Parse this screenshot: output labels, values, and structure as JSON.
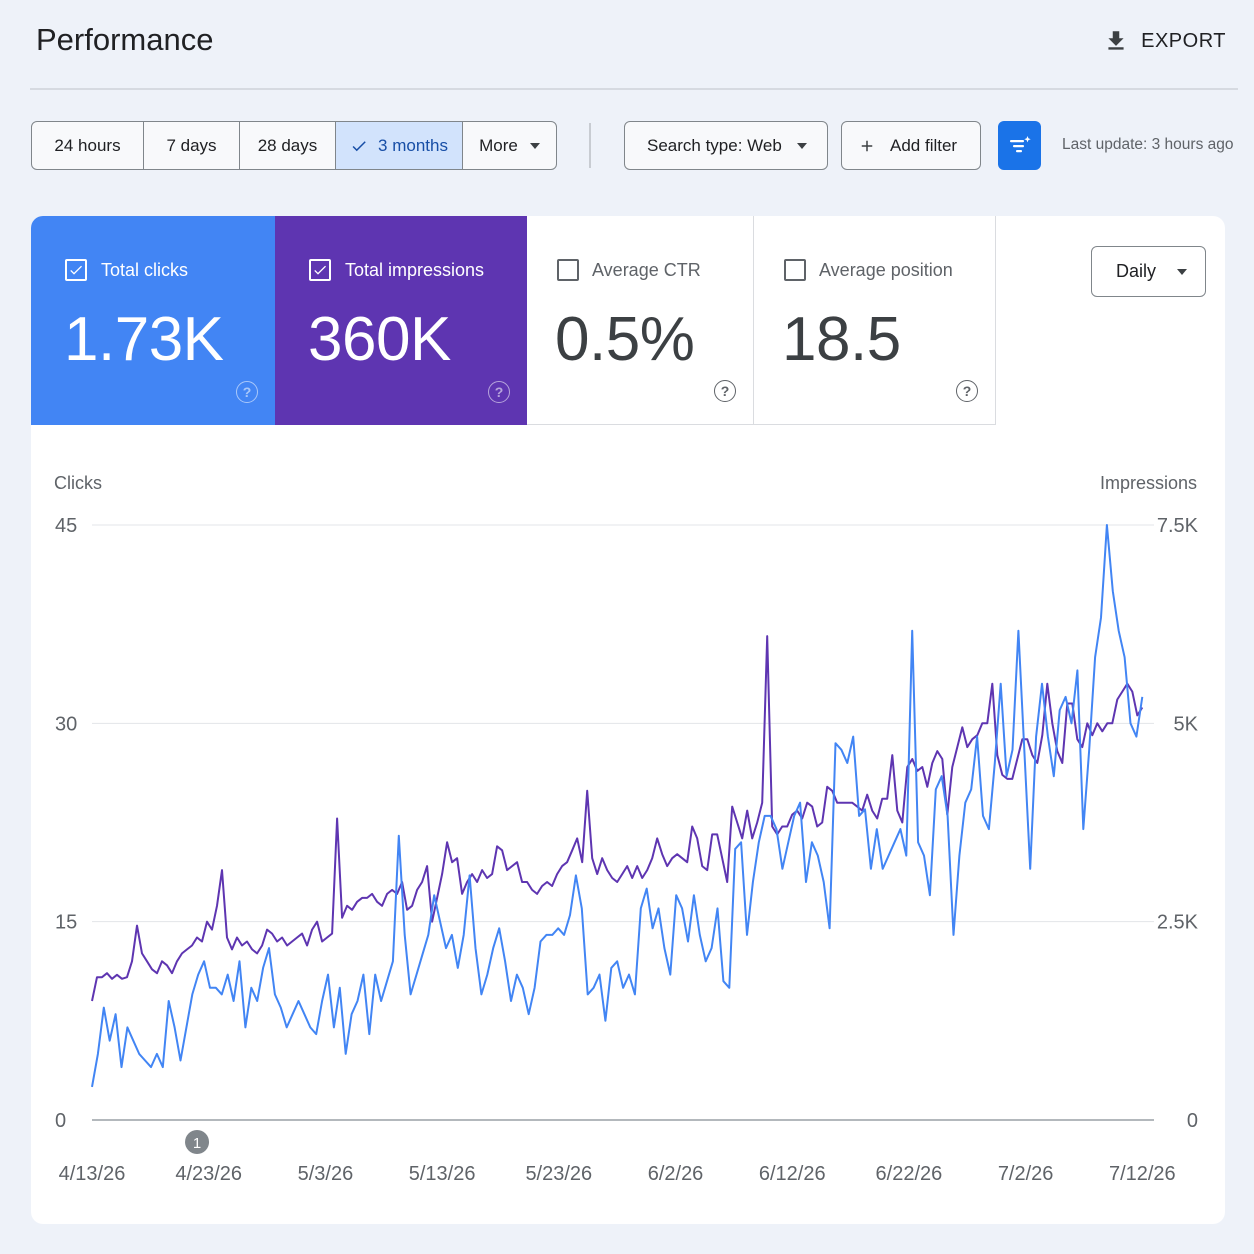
{
  "header": {
    "title": "Performance",
    "export_label": "EXPORT",
    "export_icon": "download-icon"
  },
  "toolbar": {
    "ranges": [
      {
        "label": "24 hours",
        "selected": false
      },
      {
        "label": "7 days",
        "selected": false
      },
      {
        "label": "28 days",
        "selected": false
      },
      {
        "label": "3 months",
        "selected": true
      },
      {
        "label": "More",
        "selected": false
      }
    ],
    "search_type_label": "Search type: Web",
    "add_filter_label": "Add filter",
    "filter_icon": "filter-sparkle-icon",
    "last_update": "Last update: 3 hours ago"
  },
  "metrics": [
    {
      "label": "Total clicks",
      "value": "1.73K",
      "checked": true,
      "color": "#4285f4"
    },
    {
      "label": "Total impressions",
      "value": "360K",
      "checked": true,
      "color": "#5e35b1"
    },
    {
      "label": "Average CTR",
      "value": "0.5%",
      "checked": false
    },
    {
      "label": "Average position",
      "value": "18.5",
      "checked": false
    }
  ],
  "granularity": {
    "selected": "Daily"
  },
  "chart_data": {
    "type": "line",
    "left_axis_title": "Clicks",
    "right_axis_title": "Impressions",
    "left_ticks": [
      "0",
      "15",
      "30",
      "45"
    ],
    "right_ticks": [
      "0",
      "2.5K",
      "5K",
      "7.5K"
    ],
    "ylim_left": [
      0,
      45
    ],
    "ylim_right": [
      0,
      7500
    ],
    "x_tick_labels": [
      "4/13/26",
      "4/23/26",
      "5/3/26",
      "5/13/26",
      "5/23/26",
      "6/2/26",
      "6/12/26",
      "6/22/26",
      "7/2/26",
      "7/12/26"
    ],
    "x_range": [
      "4/13/26",
      "7/13/26"
    ],
    "annotation": {
      "label": "1",
      "date": "4/22/26"
    },
    "grid": true,
    "colors": {
      "clicks": "#4285f4",
      "impressions": "#5e35b1"
    },
    "series": [
      {
        "name": "Clicks",
        "axis": "left",
        "values": [
          2.5,
          5,
          8.5,
          6,
          8,
          4,
          7,
          6,
          5,
          4.5,
          4,
          5,
          4,
          9,
          7,
          4.5,
          7,
          9.5,
          11,
          12,
          10,
          10,
          9.5,
          11,
          9,
          12,
          7,
          10,
          9,
          11.5,
          13,
          9.5,
          8.5,
          7,
          8,
          9,
          8,
          7,
          6.5,
          9,
          11,
          7,
          10,
          5,
          8,
          9,
          11,
          6.5,
          11,
          9,
          10.5,
          12,
          21.5,
          14,
          9.5,
          11,
          12.5,
          14,
          17,
          15,
          13,
          14,
          11.5,
          14,
          18.5,
          13,
          9.5,
          11,
          13,
          14.5,
          12,
          9,
          11,
          10,
          8,
          10,
          13.5,
          14,
          14,
          14.5,
          14,
          15.5,
          18.5,
          16,
          9.5,
          10,
          11,
          7.5,
          11.5,
          12,
          10,
          11,
          9.5,
          16,
          17.5,
          14.5,
          16,
          13,
          11,
          17,
          16,
          13.5,
          17,
          14,
          12,
          13,
          16,
          10.5,
          10,
          20.5,
          21,
          14,
          18,
          21,
          23,
          23,
          22,
          19,
          21,
          23,
          24,
          18,
          21,
          20,
          18,
          14.5,
          28.5,
          28,
          27,
          29,
          23,
          23.5,
          19,
          22,
          19,
          20,
          21,
          22,
          20,
          37,
          21,
          20,
          17,
          25,
          26,
          23,
          14,
          20,
          24,
          25,
          29,
          23,
          22,
          27,
          33,
          26,
          28,
          37,
          28,
          19,
          29,
          33,
          29,
          26,
          31,
          32,
          30,
          34,
          22,
          28,
          35,
          38,
          45,
          40,
          37,
          35,
          30,
          29,
          32
        ]
      },
      {
        "name": "Impressions",
        "axis": "right",
        "values": [
          1500,
          1800,
          1800,
          1850,
          1780,
          1830,
          1780,
          1800,
          2000,
          2450,
          2100,
          2000,
          1900,
          1850,
          2000,
          1950,
          1850,
          2000,
          2100,
          2150,
          2200,
          2300,
          2250,
          2500,
          2400,
          2700,
          3150,
          2300,
          2150,
          2300,
          2200,
          2250,
          2150,
          2100,
          2200,
          2400,
          2350,
          2250,
          2300,
          2200,
          2250,
          2300,
          2350,
          2200,
          2400,
          2500,
          2250,
          2300,
          2350,
          3800,
          2550,
          2700,
          2650,
          2750,
          2800,
          2800,
          2850,
          2750,
          2700,
          2850,
          2900,
          2850,
          3000,
          2650,
          2700,
          2900,
          3000,
          3200,
          2500,
          2800,
          3100,
          3500,
          3250,
          3300,
          2850,
          3000,
          3100,
          3000,
          3150,
          3050,
          3100,
          3450,
          3400,
          3150,
          3200,
          3250,
          3000,
          3000,
          2900,
          2850,
          2950,
          3000,
          2950,
          3100,
          3200,
          3250,
          3400,
          3550,
          3250,
          4150,
          3300,
          3100,
          3300,
          3150,
          3050,
          3000,
          3100,
          3200,
          3050,
          3200,
          3050,
          3150,
          3300,
          3550,
          3350,
          3200,
          3300,
          3350,
          3300,
          3250,
          3700,
          3550,
          3200,
          3150,
          3600,
          3600,
          3300,
          3000,
          3950,
          3750,
          3550,
          3900,
          3550,
          3750,
          4000,
          6100,
          3700,
          3600,
          3700,
          3700,
          3850,
          3900,
          3800,
          4000,
          3950,
          3700,
          3750,
          4200,
          4150,
          4000,
          4000,
          4000,
          4000,
          3950,
          3900,
          4100,
          3900,
          3800,
          4050,
          4050,
          4600,
          3900,
          3750,
          4450,
          4550,
          4400,
          4450,
          4200,
          4500,
          4650,
          4550,
          3850,
          4450,
          4700,
          4950,
          4700,
          4800,
          4850,
          5000,
          5000,
          5500,
          4600,
          4350,
          4300,
          4300,
          4550,
          4800,
          4800,
          4600,
          4500,
          4850,
          5500,
          5000,
          4650,
          4500,
          5250,
          5250,
          4800,
          4700,
          5000,
          4850,
          5000,
          4900,
          5000,
          5000,
          5300,
          5400,
          5500,
          5400,
          5100,
          5200
        ]
      }
    ]
  }
}
